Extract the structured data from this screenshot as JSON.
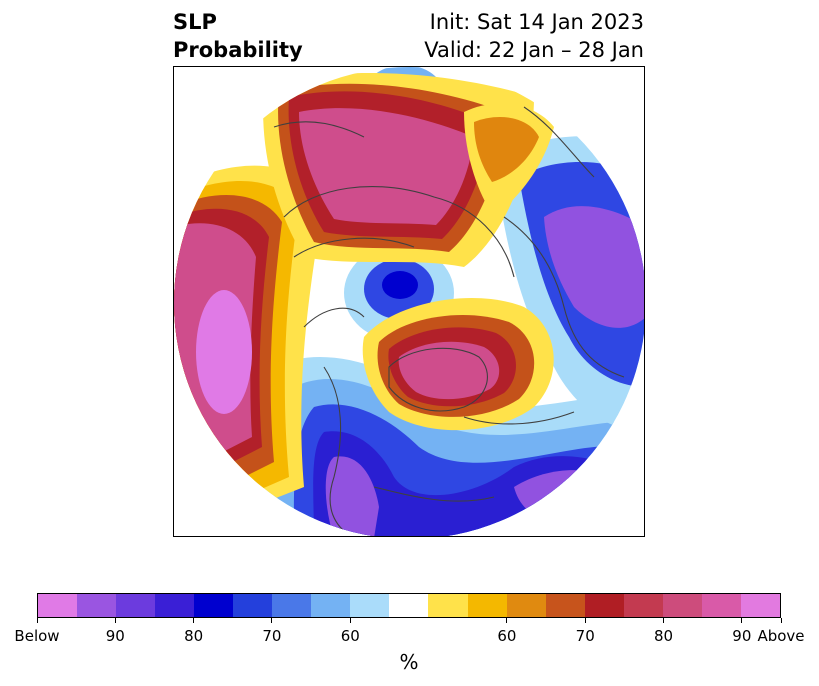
{
  "title": {
    "left_line1": "SLP",
    "left_line2": "Probability",
    "right_line1": "Init: Sat 14 Jan 2023",
    "right_line2": "Valid: 22 Jan – 28 Jan"
  },
  "map": {
    "projection": "north-polar-stereographic",
    "field": "SLP tercile probability",
    "colors": {
      "below_90_plus": "#e07ae6",
      "below_deep": "#9152e0",
      "below_strong": "#2a1fd2",
      "below_mid": "#2f47e3",
      "below_light": "#74b2f3",
      "below_faint": "#a9dcf9",
      "neutral": "#ffffff",
      "above_faint": "#ffe24a",
      "above_light": "#f5b800",
      "above_mid": "#e0860e",
      "above_strong": "#c4521a",
      "above_deep": "#b2202a",
      "above_85": "#c83a58",
      "above_90": "#cf4d8c",
      "above_max": "#e07ae6",
      "coastline": "#404040"
    }
  },
  "colorbar": {
    "colors": [
      "#e07ae6",
      "#9a55e1",
      "#6c3bde",
      "#3a1fd6",
      "#0000cf",
      "#2440dc",
      "#4a78e8",
      "#74b2f3",
      "#aadcfa",
      "#ffffff",
      "#ffe24a",
      "#f4b800",
      "#e08a10",
      "#c7541c",
      "#b01e24",
      "#c33a50",
      "#cd4c7c",
      "#d95aa8",
      "#e27ae0"
    ],
    "ticks": [
      "Below",
      "90",
      "80",
      "70",
      "60",
      "60",
      "70",
      "80",
      "90",
      "Above"
    ],
    "unit_label": "%"
  }
}
